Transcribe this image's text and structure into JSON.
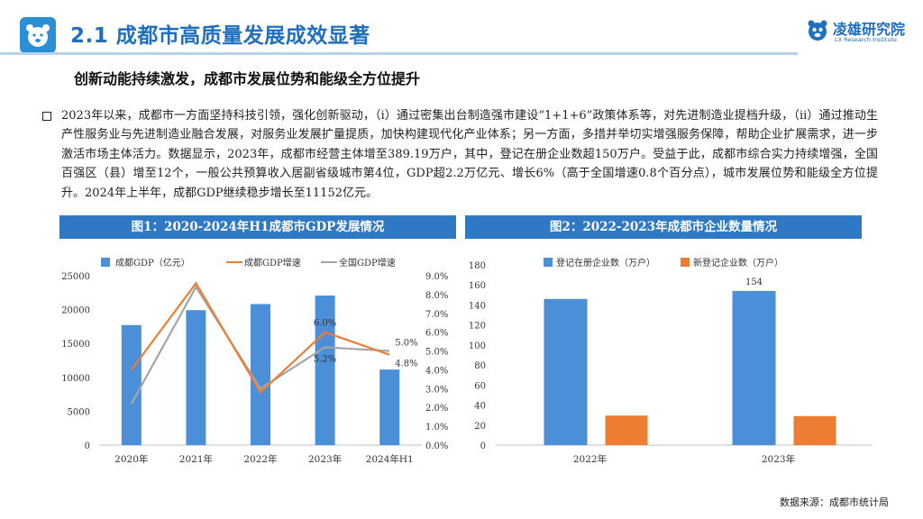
{
  "header": {
    "title": "2.1 成都市高质量发展成效显著",
    "brand_name": "凌雄研究院",
    "brand_sub": "LX Research Institute",
    "accent_color": "#1f6fc0"
  },
  "subtitle": "创新动能持续激发，成都市发展位势和能级全方位提升",
  "paragraph": "2023年以来，成都市一方面坚持科技引领，强化创新驱动，（i）通过密集出台制造强市建设“1+1+6”政策体系等，对先进制造业提档升级，（ii）通过推动生产性服务业与先进制造业融合发展，对服务业发展扩量提质，加快构建现代化产业体系；另一方面，多措并举切实增强服务保障，帮助企业扩展需求，进一步激活市场主体活力。数据显示，2023年，成都市经营主体增至389.19万户，其中，登记在册企业数超150万户。受益于此，成都市综合实力持续增强，全国百强区（县）增至12个，一般公共预算收入居副省级城市第4位，GDP超2.2万亿元、增长6%（高于全国增速0.8个百分点），城市发展位势和能级全方位提升。2024年上半年，成都GDP继续稳步增长至11152亿元。",
  "fig1_title": "图1：2020-2024年H1成都市GDP发展情况",
  "fig2_title": "图2：2022-2023年成都市企业数量情况",
  "source": "数据来源：成都市统计局",
  "chart_data": [
    {
      "type": "bar",
      "title": "图1：2020-2024年H1成都市GDP发展情况",
      "categories": [
        "2020年",
        "2021年",
        "2022年",
        "2023年",
        "2024年H1"
      ],
      "series": [
        {
          "name": "成都GDP（亿元）",
          "type": "bar",
          "axis": "left",
          "color": "#4a8fd8",
          "values": [
            17717,
            19917,
            20818,
            22075,
            11152
          ]
        },
        {
          "name": "成都GDP增速",
          "type": "line",
          "axis": "right",
          "color": "#ed7d31",
          "values": [
            4.0,
            8.6,
            2.8,
            6.0,
            4.8
          ]
        },
        {
          "name": "全国GDP增速",
          "type": "line",
          "axis": "right",
          "color": "#a5a5a5",
          "values": [
            2.2,
            8.4,
            3.0,
            5.2,
            5.0
          ]
        }
      ],
      "left_ticks": [
        "25000",
        "20000",
        "15000",
        "10000",
        "5000",
        "0"
      ],
      "right_ticks": [
        "9.0%",
        "8.0%",
        "7.0%",
        "6.0%",
        "5.0%",
        "4.0%",
        "3.0%",
        "2.0%",
        "1.0%",
        "0.0%"
      ],
      "ylim_left": [
        0,
        25000
      ],
      "ylim_right": [
        0,
        9
      ],
      "data_labels": [
        {
          "text": "6.0%",
          "series": 1,
          "index": 3
        },
        {
          "text": "5.2%",
          "series": 2,
          "index": 3
        },
        {
          "text": "5.0%",
          "series": 2,
          "index": 4
        },
        {
          "text": "4.8%",
          "series": 1,
          "index": 4
        }
      ],
      "legend_position": "top",
      "grid": false
    },
    {
      "type": "bar",
      "title": "图2：2022-2023年成都市企业数量情况",
      "categories": [
        "2022年",
        "2023年"
      ],
      "series": [
        {
          "name": "登记在册企业数（万户）",
          "color": "#4a8fd8",
          "values": [
            146,
            154
          ]
        },
        {
          "name": "新登记企业数（万户）",
          "color": "#ed7d31",
          "values": [
            29.5,
            29
          ]
        }
      ],
      "ticks": [
        "180",
        "160",
        "140",
        "120",
        "100",
        "80",
        "60",
        "40",
        "20",
        "0"
      ],
      "ylim": [
        0,
        180
      ],
      "data_labels": [
        {
          "text": "154",
          "series": 0,
          "index": 1
        }
      ],
      "legend_position": "top",
      "grid": false
    }
  ]
}
